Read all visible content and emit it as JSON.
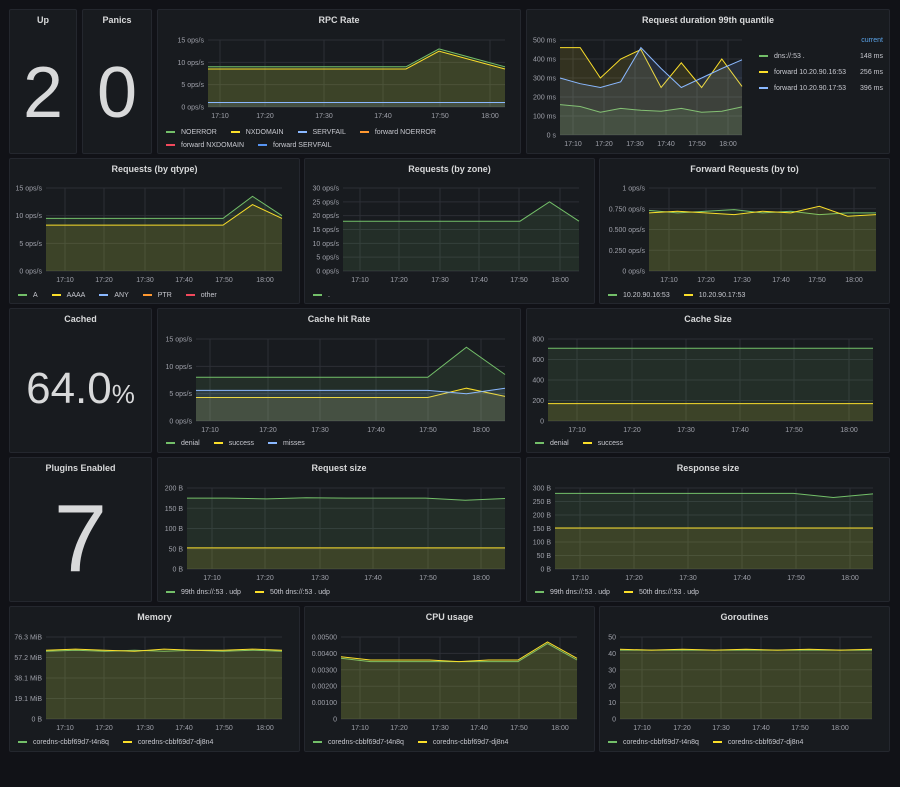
{
  "colors": {
    "green": "#73bf69",
    "yellow": "#fade2a",
    "cyan": "#8ab8ff",
    "blue": "#5794f2",
    "orange": "#ff9830",
    "red": "#f2495c",
    "grid": "#2c2f36"
  },
  "stats": {
    "up": {
      "title": "Up",
      "value": "2"
    },
    "panics": {
      "title": "Panics",
      "value": "0"
    },
    "cached": {
      "title": "Cached",
      "value": "64.0",
      "unit": "%"
    },
    "plugins": {
      "title": "Plugins Enabled",
      "value": "7"
    }
  },
  "panels": {
    "rpc": {
      "title": "RPC Rate",
      "ylabels": [
        "15 ops/s",
        "10 ops/s",
        "5 ops/s",
        "0 ops/s"
      ],
      "ymax": 15,
      "legend": [
        "NOERROR",
        "NXDOMAIN",
        "SERVFAIL",
        "forward NOERROR",
        "forward NXDOMAIN",
        "forward SERVFAIL"
      ],
      "legend_colors": [
        "#73bf69",
        "#fade2a",
        "#8ab8ff",
        "#ff9830",
        "#f2495c",
        "#5794f2"
      ]
    },
    "duration": {
      "title": "Request duration 99th quantile",
      "ylabels": [
        "500 ms",
        "400 ms",
        "300 ms",
        "200 ms",
        "100 ms",
        "0 s"
      ],
      "ymax": 500,
      "legend_header": "current",
      "legend": [
        {
          "name": "dns://:53 .",
          "value": "148 ms",
          "color": "#73bf69"
        },
        {
          "name": "forward 10.20.90.16:53",
          "value": "256 ms",
          "color": "#fade2a"
        },
        {
          "name": "forward 10.20.90.17:53",
          "value": "396 ms",
          "color": "#8ab8ff"
        }
      ]
    },
    "qtype": {
      "title": "Requests (by qtype)",
      "ylabels": [
        "15 ops/s",
        "10 ops/s",
        "5 ops/s",
        "0 ops/s"
      ],
      "ymax": 15,
      "legend": [
        "A",
        "AAAA",
        "ANY",
        "PTR",
        "other"
      ],
      "legend_colors": [
        "#73bf69",
        "#fade2a",
        "#8ab8ff",
        "#ff9830",
        "#f2495c"
      ]
    },
    "zone": {
      "title": "Requests (by zone)",
      "ylabels": [
        "30 ops/s",
        "25 ops/s",
        "20 ops/s",
        "15 ops/s",
        "10 ops/s",
        "5 ops/s",
        "0 ops/s"
      ],
      "ymax": 30,
      "legend": [
        "."
      ],
      "legend_colors": [
        "#73bf69"
      ]
    },
    "forward": {
      "title": "Forward Requests (by to)",
      "ylabels": [
        "1 ops/s",
        "0.750 ops/s",
        "0.500 ops/s",
        "0.250 ops/s",
        "0 ops/s"
      ],
      "ymax": 1,
      "legend": [
        "10.20.90.16:53",
        "10.20.90.17:53"
      ],
      "legend_colors": [
        "#73bf69",
        "#fade2a"
      ]
    },
    "cachehit": {
      "title": "Cache hit Rate",
      "ylabels": [
        "15 ops/s",
        "10 ops/s",
        "5 ops/s",
        "0 ops/s"
      ],
      "ymax": 15,
      "legend": [
        "denial",
        "success",
        "misses"
      ],
      "legend_colors": [
        "#73bf69",
        "#fade2a",
        "#8ab8ff"
      ]
    },
    "cachesize": {
      "title": "Cache Size",
      "ylabels": [
        "800",
        "600",
        "400",
        "200",
        "0"
      ],
      "ymax": 800,
      "legend": [
        "denial",
        "success"
      ],
      "legend_colors": [
        "#73bf69",
        "#fade2a"
      ]
    },
    "reqsize": {
      "title": "Request size",
      "ylabels": [
        "200 B",
        "150 B",
        "100 B",
        "50 B",
        "0 B"
      ],
      "ymax": 200,
      "legend": [
        "99th dns://:53 . udp",
        "50th dns://:53 . udp"
      ],
      "legend_colors": [
        "#73bf69",
        "#fade2a"
      ]
    },
    "respsize": {
      "title": "Response size",
      "ylabels": [
        "300 B",
        "250 B",
        "200 B",
        "150 B",
        "100 B",
        "50 B",
        "0 B"
      ],
      "ymax": 300,
      "legend": [
        "99th dns://:53 . udp",
        "50th dns://:53 . udp"
      ],
      "legend_colors": [
        "#73bf69",
        "#fade2a"
      ]
    },
    "memory": {
      "title": "Memory",
      "ylabels": [
        "76.3 MiB",
        "57.2 MiB",
        "38.1 MiB",
        "19.1 MiB",
        "0 B"
      ],
      "ymax": 76.3,
      "legend": [
        "coredns-cbbf69d7-t4n8q",
        "coredns-cbbf69d7-dj8n4"
      ],
      "legend_colors": [
        "#73bf69",
        "#fade2a"
      ]
    },
    "cpu": {
      "title": "CPU usage",
      "ylabels": [
        "0.00500",
        "0.00400",
        "0.00300",
        "0.00200",
        "0.00100",
        "0"
      ],
      "ymax": 0.005,
      "legend": [
        "coredns-cbbf69d7-t4n8q",
        "coredns-cbbf69d7-dj8n4"
      ],
      "legend_colors": [
        "#73bf69",
        "#fade2a"
      ]
    },
    "goroutines": {
      "title": "Goroutines",
      "ylabels": [
        "50",
        "40",
        "30",
        "20",
        "10",
        "0"
      ],
      "ymax": 50,
      "legend": [
        "coredns-cbbf69d7-t4n8q",
        "coredns-cbbf69d7-dj8n4"
      ],
      "legend_colors": [
        "#73bf69",
        "#fade2a"
      ]
    }
  },
  "xlabels_a": [
    "17:10",
    "17:20",
    "17:30",
    "17:40",
    "17:50",
    "18:00"
  ],
  "chart_data": [
    {
      "type": "line",
      "title": "RPC Rate",
      "x": [
        "17:05",
        "17:10",
        "17:20",
        "17:30",
        "17:40",
        "17:50",
        "17:55",
        "17:58",
        "18:00",
        "18:03"
      ],
      "series": [
        {
          "name": "NOERROR",
          "values": [
            9,
            9,
            9,
            9,
            9,
            9,
            9,
            13,
            11,
            9
          ]
        },
        {
          "name": "NXDOMAIN",
          "values": [
            8.5,
            8.5,
            8.5,
            8.5,
            8.5,
            8.5,
            8.5,
            12.5,
            10.5,
            8.5
          ]
        },
        {
          "name": "forward NOERROR",
          "values": [
            1,
            1,
            1,
            1,
            1,
            1,
            1,
            1,
            1,
            1
          ]
        }
      ],
      "ylim": [
        0,
        15
      ]
    },
    {
      "type": "line",
      "title": "Request duration 99th quantile",
      "series": [
        {
          "name": "dns://:53 .",
          "values": [
            160,
            150,
            120,
            140,
            130,
            125,
            140,
            120,
            125,
            148
          ]
        },
        {
          "name": "forward 10.20.90.16:53",
          "values": [
            460,
            460,
            300,
            400,
            450,
            250,
            380,
            250,
            400,
            256
          ]
        },
        {
          "name": "forward 10.20.90.17:53",
          "values": [
            300,
            270,
            250,
            280,
            460,
            350,
            250,
            300,
            350,
            396
          ]
        }
      ],
      "ylim": [
        0,
        500
      ]
    },
    {
      "type": "line",
      "title": "Requests (by qtype)",
      "series": [
        {
          "name": "A",
          "values": [
            9.5,
            9.5,
            9.5,
            9.5,
            9.5,
            9.5,
            9.5,
            13.5,
            10
          ]
        },
        {
          "name": "AAAA",
          "values": [
            8.3,
            8.3,
            8.3,
            8.3,
            8.3,
            8.3,
            8.3,
            12,
            9.5
          ]
        }
      ],
      "ylim": [
        0,
        15
      ]
    },
    {
      "type": "line",
      "title": "Requests (by zone)",
      "series": [
        {
          "name": ".",
          "values": [
            18,
            18,
            18,
            18,
            18,
            18,
            18,
            25,
            18
          ]
        }
      ],
      "ylim": [
        0,
        30
      ]
    },
    {
      "type": "line",
      "title": "Forward Requests (by to)",
      "series": [
        {
          "name": "10.20.90.16:53",
          "values": [
            0.73,
            0.7,
            0.72,
            0.74,
            0.7,
            0.72,
            0.68,
            0.7,
            0.7
          ]
        },
        {
          "name": "10.20.90.17:53",
          "values": [
            0.7,
            0.72,
            0.7,
            0.68,
            0.72,
            0.7,
            0.78,
            0.66,
            0.68
          ]
        }
      ],
      "ylim": [
        0,
        1
      ]
    },
    {
      "type": "line",
      "title": "Cache hit Rate",
      "series": [
        {
          "name": "denial",
          "values": [
            8,
            8,
            8,
            8,
            8,
            8,
            8,
            13.5,
            8.5
          ]
        },
        {
          "name": "success",
          "values": [
            4.3,
            4.3,
            4.3,
            4.3,
            4.3,
            4.3,
            4.3,
            6,
            4.5
          ]
        },
        {
          "name": "misses",
          "values": [
            5.6,
            5.6,
            5.6,
            5.6,
            5.6,
            5.6,
            5.6,
            5,
            6
          ]
        }
      ],
      "ylim": [
        0,
        15
      ]
    },
    {
      "type": "line",
      "title": "Cache Size",
      "series": [
        {
          "name": "denial",
          "values": [
            710,
            710,
            710,
            710,
            710,
            710,
            710,
            710,
            710
          ]
        },
        {
          "name": "success",
          "values": [
            170,
            170,
            170,
            170,
            170,
            170,
            170,
            170,
            170
          ]
        }
      ],
      "ylim": [
        0,
        800
      ]
    },
    {
      "type": "line",
      "title": "Request size",
      "series": [
        {
          "name": "99th dns://:53 . udp",
          "values": [
            175,
            175,
            173,
            176,
            175,
            175,
            175,
            170,
            174
          ]
        },
        {
          "name": "50th dns://:53 . udp",
          "values": [
            52,
            52,
            52,
            52,
            52,
            52,
            52,
            52,
            52
          ]
        }
      ],
      "ylim": [
        0,
        200
      ]
    },
    {
      "type": "line",
      "title": "Response size",
      "series": [
        {
          "name": "99th dns://:53 . udp",
          "values": [
            280,
            280,
            280,
            280,
            280,
            280,
            280,
            265,
            278
          ]
        },
        {
          "name": "50th dns://:53 . udp",
          "values": [
            152,
            152,
            152,
            152,
            152,
            152,
            152,
            152,
            152
          ]
        }
      ],
      "ylim": [
        0,
        300
      ]
    },
    {
      "type": "line",
      "title": "Memory",
      "series": [
        {
          "name": "coredns-cbbf69d7-t4n8q",
          "values": [
            63,
            64,
            63,
            64,
            63,
            64,
            63,
            64,
            63
          ]
        },
        {
          "name": "coredns-cbbf69d7-dj8n4",
          "values": [
            64,
            65,
            64,
            63,
            65,
            64,
            64,
            65,
            64
          ]
        }
      ],
      "ylim": [
        0,
        76.3
      ]
    },
    {
      "type": "line",
      "title": "CPU usage",
      "series": [
        {
          "name": "coredns-cbbf69d7-t4n8q",
          "values": [
            0.0037,
            0.0035,
            0.0035,
            0.0035,
            0.0035,
            0.0035,
            0.0035,
            0.0046,
            0.0036
          ]
        },
        {
          "name": "coredns-cbbf69d7-dj8n4",
          "values": [
            0.0038,
            0.0036,
            0.0036,
            0.0036,
            0.0035,
            0.0036,
            0.0036,
            0.0047,
            0.0037
          ]
        }
      ],
      "ylim": [
        0,
        0.005
      ]
    },
    {
      "type": "line",
      "title": "Goroutines",
      "series": [
        {
          "name": "coredns-cbbf69d7-t4n8q",
          "values": [
            42,
            42,
            42,
            42,
            42,
            42,
            42,
            42,
            42
          ]
        },
        {
          "name": "coredns-cbbf69d7-dj8n4",
          "values": [
            42.5,
            42,
            42.5,
            42,
            42.5,
            42,
            42.5,
            42,
            42.5
          ]
        }
      ],
      "ylim": [
        0,
        50
      ]
    }
  ]
}
